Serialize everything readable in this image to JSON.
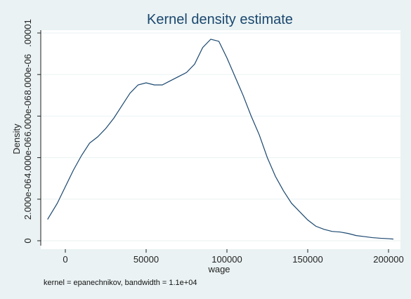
{
  "chart_data": {
    "type": "line",
    "title": "Kernel density estimate",
    "xlabel": "wage",
    "ylabel": "Density",
    "note": "kernel = epanechnikov, bandwidth =  1.1e+04",
    "xlim": [
      -11000,
      205000
    ],
    "ylim": [
      0,
      1e-05
    ],
    "x_ticks": [
      {
        "value": 0,
        "label": "0"
      },
      {
        "value": 50000,
        "label": "50000"
      },
      {
        "value": 100000,
        "label": "100000"
      },
      {
        "value": 150000,
        "label": "150000"
      },
      {
        "value": 200000,
        "label": "200000"
      }
    ],
    "y_ticks": [
      {
        "value": 0,
        "label": "0"
      },
      {
        "value": 2e-06,
        "label": "2.000e-06"
      },
      {
        "value": 4e-06,
        "label": "4.000e-06"
      },
      {
        "value": 6e-06,
        "label": "6.000e-06"
      },
      {
        "value": 8e-06,
        "label": "8.000e-06"
      },
      {
        "value": 1e-05,
        "label": ".00001"
      }
    ],
    "grid": true,
    "colors": {
      "background": "#eaf2f3",
      "plot_area": "#ffffff",
      "line": "#1a476f",
      "title": "#1a476f",
      "grid": "#eaf2f3"
    },
    "series": [
      {
        "x": [
          -11000,
          -5000,
          0,
          5000,
          10000,
          15000,
          20000,
          25000,
          30000,
          35000,
          40000,
          45000,
          50000,
          55000,
          60000,
          65000,
          70000,
          75000,
          80000,
          85000,
          90000,
          95000,
          100000,
          105000,
          110000,
          115000,
          120000,
          125000,
          130000,
          135000,
          140000,
          145000,
          150000,
          155000,
          160000,
          165000,
          170000,
          175000,
          180000,
          185000,
          190000,
          195000,
          200000,
          203000
        ],
        "y": [
          1.03e-06,
          1.8e-06,
          2.6e-06,
          3.4e-06,
          4.1e-06,
          4.7e-06,
          5e-06,
          5.4e-06,
          5.9e-06,
          6.5e-06,
          7.1e-06,
          7.5e-06,
          7.6e-06,
          7.5e-06,
          7.5e-06,
          7.7e-06,
          7.9e-06,
          8.1e-06,
          8.5e-06,
          9.3e-06,
          9.7e-06,
          9.6e-06,
          8.8e-06,
          7.9e-06,
          7e-06,
          6e-06,
          5.1e-06,
          4e-06,
          3.1e-06,
          2.4e-06,
          1.8e-06,
          1.4e-06,
          1e-06,
          7e-07,
          5.5e-07,
          4.5e-07,
          4.2e-07,
          3.5e-07,
          2.5e-07,
          2e-07,
          1.5e-07,
          1.2e-07,
          1e-07,
          8e-08
        ]
      }
    ]
  }
}
